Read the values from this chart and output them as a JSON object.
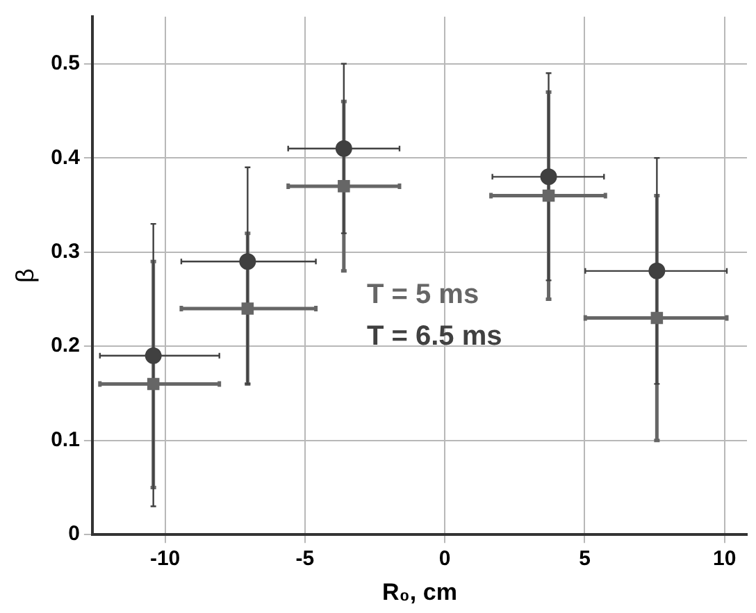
{
  "chart_data": {
    "type": "scatter",
    "xlabel": "R₀, cm",
    "ylabel": "β",
    "xlim": [
      -12.6,
      10.8
    ],
    "xticks": [
      -10,
      -5,
      0,
      5,
      10
    ],
    "ylim": [
      0,
      0.55
    ],
    "yticks": [
      0,
      0.1,
      0.2,
      0.3,
      0.4,
      0.5
    ],
    "grid": true,
    "legend": "center",
    "series": [
      {
        "name": "T = 5 ms",
        "color": "#666666",
        "marker": "square",
        "x": [
          -10.42,
          -7.05,
          -3.61,
          3.71,
          7.58
        ],
        "values": [
          0.16,
          0.24,
          0.37,
          0.36,
          0.23
        ],
        "errors": [
          [
            0.05,
            0.29
          ],
          [
            0.16,
            0.32
          ],
          [
            0.28,
            0.46
          ],
          [
            0.25,
            0.47
          ],
          [
            0.1,
            0.36
          ]
        ],
        "xerrors": [
          [
            -12.33,
            -8.06
          ],
          [
            -9.42,
            -4.61
          ],
          [
            -5.6,
            -1.62
          ],
          [
            1.65,
            5.74
          ],
          [
            5.02,
            10.08
          ]
        ]
      },
      {
        "name": "T = 6.5 ms",
        "color": "#404040",
        "marker": "circle",
        "x": [
          -10.42,
          -7.05,
          -3.61,
          3.71,
          7.58
        ],
        "values": [
          0.19,
          0.29,
          0.41,
          0.38,
          0.28
        ],
        "errors": [
          [
            0.03,
            0.33
          ],
          [
            0.16,
            0.39
          ],
          [
            0.32,
            0.5
          ],
          [
            0.27,
            0.49
          ],
          [
            0.16,
            0.4
          ]
        ],
        "xerrors": [
          [
            -12.33,
            -8.06
          ],
          [
            -9.42,
            -4.61
          ],
          [
            -5.6,
            -1.62
          ],
          [
            1.7,
            5.69
          ],
          [
            5.02,
            10.08
          ]
        ]
      }
    ]
  }
}
